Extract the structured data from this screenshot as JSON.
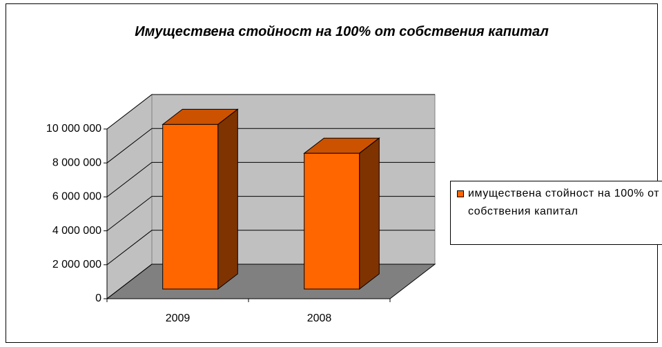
{
  "chart_data": {
    "type": "bar3d",
    "title": "Имуществена стойност на 100% от собствения капитал",
    "categories": [
      "2009",
      "2008"
    ],
    "series": [
      {
        "name": "имуществена стойност на 100% от собствения капитал",
        "color": "#ff6600",
        "values": [
          9700000,
          8000000
        ]
      }
    ],
    "ylim": [
      0,
      10000000
    ],
    "yticks": [
      0,
      {
        "value": 2000000,
        "label": "2 000 000"
      },
      {
        "value": 4000000,
        "label": "4 000 000"
      },
      {
        "value": 6000000,
        "label": "6 000 000"
      },
      {
        "value": 8000000,
        "label": "8 000 000"
      },
      {
        "value": 10000000,
        "label": "10 000 000"
      }
    ],
    "grid": true,
    "legend": "right"
  }
}
